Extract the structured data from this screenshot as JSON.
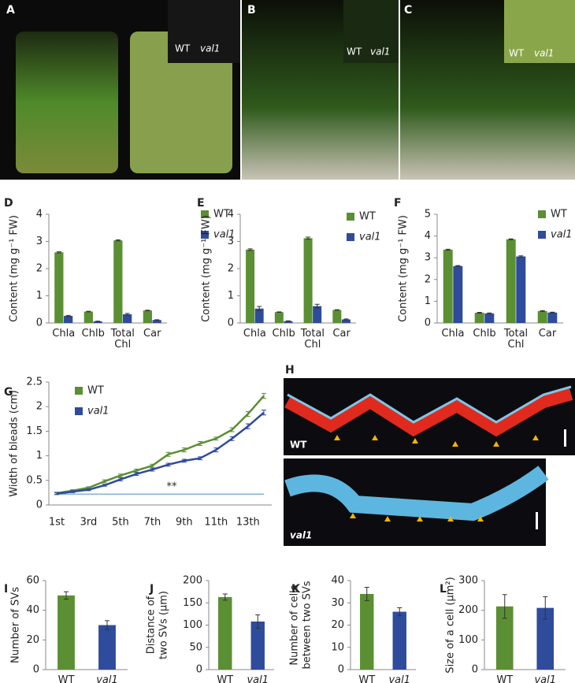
{
  "photos": [
    {
      "panel": "A",
      "labels": [
        "WT",
        "val1"
      ]
    },
    {
      "panel": "B",
      "labels": [
        "WT",
        "val1"
      ]
    },
    {
      "panel": "C",
      "labels": [
        "WT",
        "val1"
      ]
    },
    {
      "panel": "H",
      "labels": [
        "WT",
        "val1"
      ]
    }
  ],
  "chart_data": [
    {
      "type": "bar",
      "panel": "D",
      "ylabel": [
        "Content (mg g⁻¹ FW)"
      ],
      "categories": [
        "Chla",
        "Chlb",
        "Total Chl",
        "Car"
      ],
      "series": [
        {
          "name": "WT",
          "color": "#5b8f33",
          "values": [
            2.6,
            0.42,
            3.04,
            0.46
          ],
          "errors": [
            0.02,
            0.01,
            0.02,
            0.01
          ]
        },
        {
          "name": "val1",
          "color": "#2f4b9b",
          "values": [
            0.26,
            0.06,
            0.32,
            0.11
          ],
          "errors": [
            0.02,
            0.01,
            0.03,
            0.01
          ]
        }
      ],
      "ylim": [
        0,
        4
      ],
      "yticks": [
        0,
        1,
        2,
        3,
        4
      ]
    },
    {
      "type": "bar",
      "panel": "E",
      "ylabel": [
        "Content (mg g⁻¹ FW)"
      ],
      "categories": [
        "Chla",
        "Chlb",
        "Total Chl",
        "Car"
      ],
      "series": [
        {
          "name": "WT",
          "color": "#5b8f33",
          "values": [
            2.7,
            0.4,
            3.12,
            0.48
          ],
          "errors": [
            0.03,
            0.01,
            0.04,
            0.01
          ]
        },
        {
          "name": "val1",
          "color": "#2f4b9b",
          "values": [
            0.53,
            0.07,
            0.62,
            0.13
          ],
          "errors": [
            0.08,
            0.01,
            0.07,
            0.02
          ]
        }
      ],
      "ylim": [
        0,
        4
      ],
      "yticks": [
        0,
        1,
        2,
        3,
        4
      ]
    },
    {
      "type": "bar",
      "panel": "F",
      "ylabel": [
        "Content (mg g⁻¹ FW)"
      ],
      "categories": [
        "Chla",
        "Chlb",
        "Total Chl",
        "Car"
      ],
      "series": [
        {
          "name": "WT",
          "color": "#5b8f33",
          "values": [
            3.37,
            0.47,
            3.85,
            0.55
          ],
          "errors": [
            0.02,
            0.02,
            0.02,
            0.02
          ]
        },
        {
          "name": "val1",
          "color": "#2f4b9b",
          "values": [
            2.62,
            0.44,
            3.06,
            0.48
          ],
          "errors": [
            0.02,
            0.02,
            0.03,
            0.02
          ]
        }
      ],
      "ylim": [
        0,
        5
      ],
      "yticks": [
        0,
        1,
        2,
        3,
        4,
        5
      ]
    },
    {
      "type": "line",
      "panel": "G",
      "ylabel": [
        "Width of bleads (cm)"
      ],
      "categories": [
        "1st",
        null,
        "3rd",
        null,
        "5th",
        null,
        "7th",
        null,
        "9th",
        null,
        "11th",
        null,
        "13th",
        null
      ],
      "series": [
        {
          "name": "WT",
          "color": "#5b8f33",
          "values": [
            0.24,
            0.29,
            0.35,
            0.48,
            0.6,
            0.7,
            0.8,
            1.03,
            1.12,
            1.25,
            1.35,
            1.53,
            1.85,
            2.22
          ],
          "errors": [
            0.02,
            0.02,
            0.02,
            0.03,
            0.03,
            0.03,
            0.03,
            0.04,
            0.04,
            0.04,
            0.03,
            0.04,
            0.05,
            0.05
          ]
        },
        {
          "name": "val1",
          "color": "#2f4b9b",
          "values": [
            0.23,
            0.27,
            0.31,
            0.4,
            0.52,
            0.63,
            0.72,
            0.82,
            0.9,
            0.95,
            1.12,
            1.35,
            1.6,
            1.88
          ],
          "errors": [
            0.02,
            0.02,
            0.02,
            0.02,
            0.03,
            0.03,
            0.03,
            0.03,
            0.03,
            0.03,
            0.04,
            0.04,
            0.05,
            0.05
          ]
        }
      ],
      "hline": 0.22,
      "annotation": "**",
      "ylim": [
        0,
        2.5
      ],
      "yticks": [
        0,
        0.5,
        1,
        1.5,
        2,
        2.5
      ]
    },
    {
      "type": "bar",
      "panel": "I",
      "ylabel": [
        "Number of SVs"
      ],
      "categories": [
        "WT",
        "val1"
      ],
      "colors": [
        "#5b8f33",
        "#2f4b9b"
      ],
      "values": [
        50,
        30
      ],
      "errors": [
        2.5,
        3
      ],
      "ylim": [
        0,
        60
      ],
      "yticks": [
        0,
        20,
        40,
        60
      ]
    },
    {
      "type": "bar",
      "panel": "J",
      "ylabel": [
        "Distance of",
        "two SVs (μm)"
      ],
      "categories": [
        "WT",
        "val1"
      ],
      "colors": [
        "#5b8f33",
        "#2f4b9b"
      ],
      "values": [
        163,
        108
      ],
      "errors": [
        7,
        15
      ],
      "ylim": [
        0,
        200
      ],
      "yticks": [
        0,
        50,
        100,
        150,
        200
      ]
    },
    {
      "type": "bar",
      "panel": "K",
      "ylabel": [
        "Number of cells",
        "between two SVs"
      ],
      "categories": [
        "WT",
        "val1"
      ],
      "colors": [
        "#5b8f33",
        "#2f4b9b"
      ],
      "values": [
        34,
        26
      ],
      "errors": [
        3,
        1.8
      ],
      "ylim": [
        0,
        40
      ],
      "yticks": [
        0,
        10,
        20,
        30,
        40
      ]
    },
    {
      "type": "bar",
      "panel": "L",
      "ylabel": [
        "Size of a cell (μm²)"
      ],
      "categories": [
        "WT",
        "val1"
      ],
      "colors": [
        "#5b8f33",
        "#2f4b9b"
      ],
      "values": [
        213,
        208
      ],
      "errors": [
        40,
        38
      ],
      "ylim": [
        0,
        300
      ],
      "yticks": [
        0,
        100,
        200,
        300
      ]
    }
  ]
}
